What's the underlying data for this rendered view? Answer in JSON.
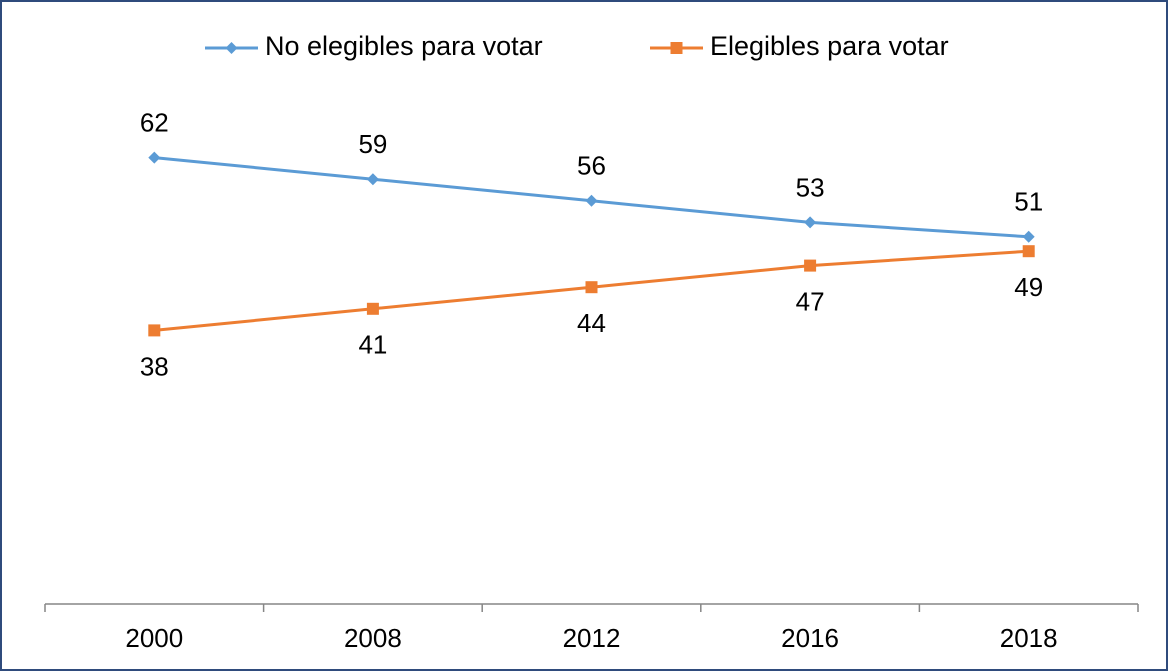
{
  "chart_data": {
    "type": "line",
    "categories": [
      "2000",
      "2008",
      "2012",
      "2016",
      "2018"
    ],
    "series": [
      {
        "name": "No elegibles para votar",
        "color": "#5b9bd5",
        "marker": "diamond",
        "label_position": "above",
        "values": [
          62,
          59,
          56,
          53,
          51
        ]
      },
      {
        "name": "Elegibles para votar",
        "color": "#ed7d31",
        "marker": "square",
        "label_position": "below",
        "values": [
          38,
          41,
          44,
          47,
          49
        ]
      }
    ],
    "ylim": [
      0,
      70
    ],
    "legend": "top"
  }
}
